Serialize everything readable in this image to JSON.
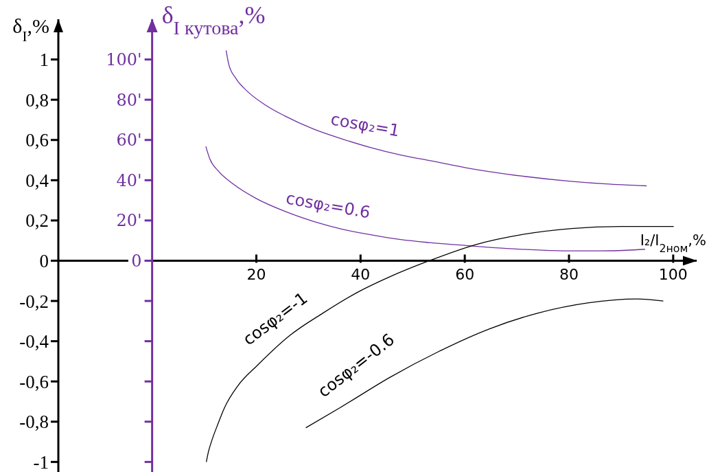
{
  "chart_data": {
    "type": "line",
    "xlabel": "I₂/I$_{2ном}$,%",
    "ylabel": "δ$_{I}$,%",
    "y2label": "δ$_{I кутова}$,%",
    "xlim": [
      -18,
      104.5
    ],
    "xticks": [
      20,
      40,
      60,
      80,
      100
    ],
    "ylim": [
      -1.05,
      1.2
    ],
    "yticks": [
      -1,
      {
        "value": -0.8,
        "label": "-0,8"
      },
      {
        "value": -0.6,
        "label": "-0,6"
      },
      {
        "value": -0.4,
        "label": "-0,4"
      },
      {
        "value": -0.2,
        "label": "-0,2"
      },
      0,
      {
        "value": 0.2,
        "label": "0,2"
      },
      {
        "value": 0.4,
        "label": "0,4"
      },
      {
        "value": 0.6,
        "label": "0,6"
      },
      {
        "value": 0.8,
        "label": "0,8"
      },
      1
    ],
    "y2lim": [
      -105,
      120
    ],
    "y2ticks": [
      {
        "value": -100,
        "label": null
      },
      {
        "value": -80,
        "label": null
      },
      {
        "value": -60,
        "label": null
      },
      {
        "value": -40,
        "label": null
      },
      {
        "value": -20,
        "label": null
      },
      0,
      {
        "value": 20,
        "label": "20'"
      },
      {
        "value": 40,
        "label": "40'"
      },
      {
        "value": 60,
        "label": "60'"
      },
      {
        "value": 80,
        "label": "80'"
      },
      {
        "value": 100,
        "label": "100'"
      }
    ],
    "series": [
      {
        "name": "cosφ₂=1",
        "color": "#7030a0",
        "axis": "y2",
        "x": [
          14.2,
          14.7,
          16.1,
          18.3,
          21.6,
          25.5,
          31.0,
          36.6,
          42.1,
          47.7,
          53.2,
          61.1,
          68.2,
          80.3,
          87.0,
          94.9
        ],
        "values": [
          104.5,
          97.7,
          90.5,
          84.1,
          77.6,
          71.9,
          65.4,
          60.4,
          56.1,
          52.5,
          49.8,
          45.8,
          43.0,
          39.5,
          38.2,
          37.2
        ]
      },
      {
        "name": "cosφ₂=0.6",
        "color": "#7030a0",
        "axis": "y2",
        "x": [
          10.3,
          11.1,
          12.7,
          15.5,
          19.9,
          25.5,
          31.0,
          36.6,
          42.1,
          47.7,
          53.2,
          61.1,
          68.0,
          74.2,
          80.0,
          86.0,
          91.0,
          94.6
        ],
        "values": [
          56.8,
          50.4,
          44.6,
          38.2,
          31.0,
          24.5,
          19.5,
          15.6,
          12.8,
          10.5,
          9.0,
          7.4,
          6.1,
          5.3,
          4.9,
          4.9,
          5.2,
          5.7
        ]
      },
      {
        "name": "cosφ₂=-1",
        "color": "#000000",
        "x": [
          10.4,
          10.8,
          11.5,
          12.5,
          13.9,
          16.5,
          20.2,
          26.5,
          32.8,
          39.2,
          45.6,
          53.2,
          62.1,
          71.0,
          80.5,
          90.0,
          100.1
        ],
        "values": [
          -1.0,
          -0.95,
          -0.89,
          -0.82,
          -0.73,
          -0.62,
          -0.52,
          -0.37,
          -0.26,
          -0.16,
          -0.08,
          0.0,
          0.08,
          0.13,
          0.16,
          0.17,
          0.17
        ]
      },
      {
        "name": "cosφ₂=-0.6",
        "color": "#000000",
        "x": [
          29.5,
          36.1,
          45.6,
          55.1,
          64.6,
          74.1,
          83.6,
          93.1,
          98.1
        ],
        "values": [
          -0.83,
          -0.73,
          -0.58,
          -0.45,
          -0.34,
          -0.26,
          -0.21,
          -0.19,
          -0.2
        ]
      }
    ]
  }
}
